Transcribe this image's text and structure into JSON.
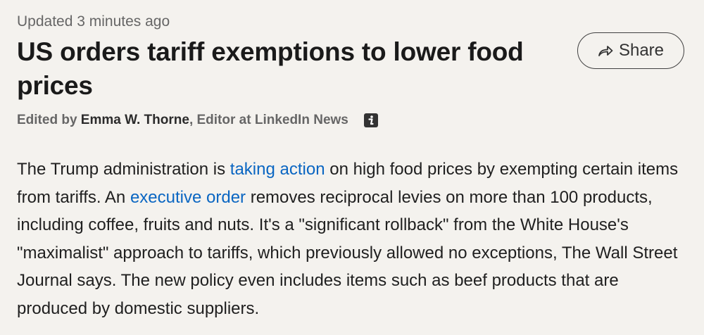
{
  "updated_text": "Updated 3 minutes ago",
  "headline": "US orders tariff exemptions to lower food prices",
  "share": {
    "label": "Share",
    "icon": "share-arrow-icon"
  },
  "byline": {
    "prefix": "Edited by ",
    "editor_name": "Emma W. Thorne",
    "suffix": ", Editor at LinkedIn News",
    "info_icon": "info-icon"
  },
  "body": {
    "part1": "The Trump administration is ",
    "link1": "taking action",
    "part2": " on high food prices by exempting certain items from tariffs. An ",
    "link2": "executive order",
    "part3": " removes reciprocal levies on more than 100 products, including coffee, fruits and nuts. It's a \"significant rollback\" from the White House's \"maximalist\" approach to tariffs, which previously allowed no exceptions, The Wall Street Journal says. The new policy even includes items such as beef products that are produced by domestic suppliers."
  },
  "colors": {
    "background": "#f4f2ee",
    "link": "#0a66c2",
    "muted_text": "#666666"
  }
}
